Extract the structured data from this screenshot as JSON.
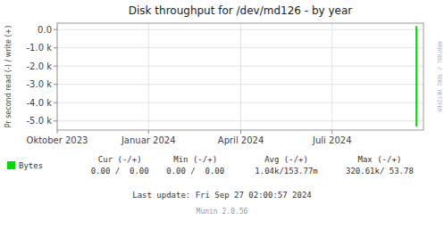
{
  "chart_data": {
    "type": "line",
    "title": "Disk throughput for /dev/md126 - by year",
    "y_label": "Pr second read (-) / write (+)",
    "x": [
      358,
      358
    ],
    "series": [
      {
        "name": "Bytes",
        "color": "#00dd00",
        "values": [
          200,
          -5300
        ]
      }
    ],
    "xlim": [
      0,
      365
    ],
    "xticks": [
      {
        "value": 0,
        "label": "Oktober 2023"
      },
      {
        "value": 91,
        "label": "Januar 2024"
      },
      {
        "value": 183,
        "label": "April 2024"
      },
      {
        "value": 274,
        "label": "Juli 2024"
      }
    ],
    "ylim": [
      -5500,
      350
    ],
    "yticks": [
      {
        "value": 0,
        "label": "0.0"
      },
      {
        "value": -1000,
        "label": "-1.0 k"
      },
      {
        "value": -2000,
        "label": "-2.0 k"
      },
      {
        "value": -3000,
        "label": "-3.0 k"
      },
      {
        "value": -4000,
        "label": "-4.0 k"
      },
      {
        "value": -5000,
        "label": "-5.0 k"
      }
    ],
    "grid": true,
    "legend": "lower left",
    "stats": {
      "headers": [
        "Cur (-/+)",
        "Min (-/+)",
        "Avg (-/+)",
        "Max (-/+)"
      ],
      "rows": [
        [
          "0.00 /  0.00",
          "0.00 /  0.00",
          "1.04k/153.77m",
          "320.61k/ 53.78"
        ]
      ]
    },
    "annotations": [
      "Last update: Fri Sep 27 02:00:57 2024",
      "Munin 2.0.56",
      "RRDTOOL / TOBI OETIKER"
    ]
  }
}
